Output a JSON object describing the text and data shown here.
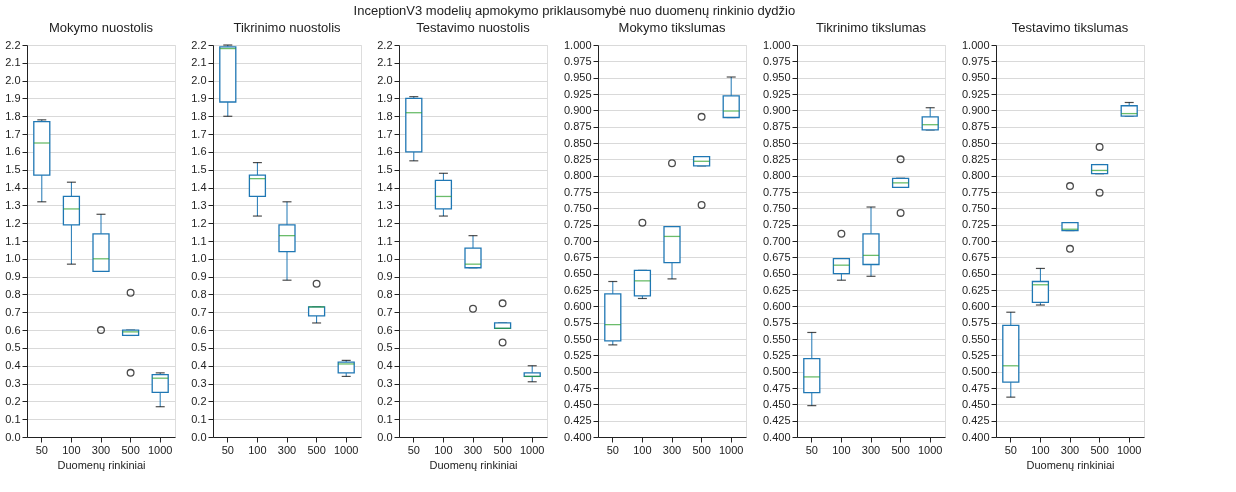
{
  "chart_data": [
    {
      "type": "box",
      "title": "Mokymo nuostolis",
      "xlabel": "Duomenų rinkiniai",
      "annotations": [
        "InceptionV3 modelių apmokymo priklausomybė nuo duomenų rinkinio dydžio"
      ],
      "color": "#1f77b4",
      "grid": "y",
      "categories": [
        "50",
        "100",
        "300",
        "500",
        "1000"
      ],
      "ylim": [
        0,
        2.2
      ],
      "yticks": [
        {
          "value": 0,
          "label": "0.0"
        },
        {
          "value": 0.1,
          "label": "0.1"
        },
        {
          "value": 0.2,
          "label": "0.2"
        },
        {
          "value": 0.3,
          "label": "0.3"
        },
        {
          "value": 0.4,
          "label": "0.4"
        },
        {
          "value": 0.5,
          "label": "0.5"
        },
        {
          "value": 0.6,
          "label": "0.6"
        },
        {
          "value": 0.7,
          "label": "0.7"
        },
        {
          "value": 0.8,
          "label": "0.8"
        },
        {
          "value": 0.9,
          "label": "0.9"
        },
        {
          "value": 1,
          "label": "1.0"
        },
        {
          "value": 1.1,
          "label": "1.1"
        },
        {
          "value": 1.2,
          "label": "1.2"
        },
        {
          "value": 1.3,
          "label": "1.3"
        },
        {
          "value": 1.4,
          "label": "1.4"
        },
        {
          "value": 1.5,
          "label": "1.5"
        },
        {
          "value": 1.6,
          "label": "1.6"
        },
        {
          "value": 1.7,
          "label": "1.7"
        },
        {
          "value": 1.8,
          "label": "1.8"
        },
        {
          "value": 1.9,
          "label": "1.9"
        },
        {
          "value": 2,
          "label": "2.0"
        },
        {
          "value": 2.1,
          "label": "2.1"
        },
        {
          "value": 2.2,
          "label": "2.2"
        }
      ],
      "boxes": [
        {
          "low": 1.32,
          "q1": 1.47,
          "median": 1.65,
          "q3": 1.77,
          "high": 1.78
        },
        {
          "low": 0.97,
          "q1": 1.19,
          "median": 1.28,
          "q3": 1.35,
          "high": 1.43
        },
        {
          "low": 0.93,
          "q1": 0.93,
          "median": 1.0,
          "q3": 1.14,
          "high": 1.25,
          "outliers": [
            0.6
          ]
        },
        {
          "low": 0.57,
          "q1": 0.57,
          "median": 0.59,
          "q3": 0.6,
          "high": 0.6,
          "outliers": [
            0.81,
            0.36
          ]
        },
        {
          "low": 0.17,
          "q1": 0.25,
          "median": 0.33,
          "q3": 0.35,
          "high": 0.36
        }
      ]
    },
    {
      "type": "box",
      "title": "Tikrinimo nuostolis",
      "color": "#1f77b4",
      "grid": "y",
      "categories": [
        "50",
        "100",
        "300",
        "500",
        "1000"
      ],
      "ylim": [
        0,
        2.2
      ],
      "yticks": [
        {
          "value": 0,
          "label": "0.0"
        },
        {
          "value": 0.1,
          "label": "0.1"
        },
        {
          "value": 0.2,
          "label": "0.2"
        },
        {
          "value": 0.3,
          "label": "0.3"
        },
        {
          "value": 0.4,
          "label": "0.4"
        },
        {
          "value": 0.5,
          "label": "0.5"
        },
        {
          "value": 0.6,
          "label": "0.6"
        },
        {
          "value": 0.7,
          "label": "0.7"
        },
        {
          "value": 0.8,
          "label": "0.8"
        },
        {
          "value": 0.9,
          "label": "0.9"
        },
        {
          "value": 1,
          "label": "1.0"
        },
        {
          "value": 1.1,
          "label": "1.1"
        },
        {
          "value": 1.2,
          "label": "1.2"
        },
        {
          "value": 1.3,
          "label": "1.3"
        },
        {
          "value": 1.4,
          "label": "1.4"
        },
        {
          "value": 1.5,
          "label": "1.5"
        },
        {
          "value": 1.6,
          "label": "1.6"
        },
        {
          "value": 1.7,
          "label": "1.7"
        },
        {
          "value": 1.8,
          "label": "1.8"
        },
        {
          "value": 1.9,
          "label": "1.9"
        },
        {
          "value": 2,
          "label": "2.0"
        },
        {
          "value": 2.1,
          "label": "2.1"
        },
        {
          "value": 2.2,
          "label": "2.2"
        }
      ],
      "boxes": [
        {
          "low": 1.8,
          "q1": 1.88,
          "median": 2.18,
          "q3": 2.19,
          "high": 2.2
        },
        {
          "low": 1.24,
          "q1": 1.35,
          "median": 1.45,
          "q3": 1.47,
          "high": 1.54
        },
        {
          "low": 0.88,
          "q1": 1.04,
          "median": 1.13,
          "q3": 1.19,
          "high": 1.32
        },
        {
          "low": 0.64,
          "q1": 0.68,
          "median": 0.73,
          "q3": 0.73,
          "high": 0.73,
          "outliers": [
            0.86
          ]
        },
        {
          "low": 0.34,
          "q1": 0.36,
          "median": 0.41,
          "q3": 0.42,
          "high": 0.43
        }
      ]
    },
    {
      "type": "box",
      "title": "Testavimo nuostolis",
      "xlabel": "Duomenų rinkiniai",
      "color": "#1f77b4",
      "grid": "y",
      "categories": [
        "50",
        "100",
        "300",
        "500",
        "1000"
      ],
      "ylim": [
        0,
        2.2
      ],
      "yticks": [
        {
          "value": 0,
          "label": "0.0"
        },
        {
          "value": 0.1,
          "label": "0.1"
        },
        {
          "value": 0.2,
          "label": "0.2"
        },
        {
          "value": 0.3,
          "label": "0.3"
        },
        {
          "value": 0.4,
          "label": "0.4"
        },
        {
          "value": 0.5,
          "label": "0.5"
        },
        {
          "value": 0.6,
          "label": "0.6"
        },
        {
          "value": 0.7,
          "label": "0.7"
        },
        {
          "value": 0.8,
          "label": "0.8"
        },
        {
          "value": 0.9,
          "label": "0.9"
        },
        {
          "value": 1,
          "label": "1.0"
        },
        {
          "value": 1.1,
          "label": "1.1"
        },
        {
          "value": 1.2,
          "label": "1.2"
        },
        {
          "value": 1.3,
          "label": "1.3"
        },
        {
          "value": 1.4,
          "label": "1.4"
        },
        {
          "value": 1.5,
          "label": "1.5"
        },
        {
          "value": 1.6,
          "label": "1.6"
        },
        {
          "value": 1.7,
          "label": "1.7"
        },
        {
          "value": 1.8,
          "label": "1.8"
        },
        {
          "value": 1.9,
          "label": "1.9"
        },
        {
          "value": 2,
          "label": "2.0"
        },
        {
          "value": 2.1,
          "label": "2.1"
        },
        {
          "value": 2.2,
          "label": "2.2"
        }
      ],
      "boxes": [
        {
          "low": 1.55,
          "q1": 1.6,
          "median": 1.82,
          "q3": 1.9,
          "high": 1.91
        },
        {
          "low": 1.24,
          "q1": 1.28,
          "median": 1.35,
          "q3": 1.44,
          "high": 1.48
        },
        {
          "low": 0.95,
          "q1": 0.95,
          "median": 0.97,
          "q3": 1.06,
          "high": 1.13,
          "outliers": [
            0.72
          ]
        },
        {
          "low": 0.61,
          "q1": 0.61,
          "median": 0.61,
          "q3": 0.64,
          "high": 0.64,
          "outliers": [
            0.75,
            0.53
          ]
        },
        {
          "low": 0.31,
          "q1": 0.34,
          "median": 0.34,
          "q3": 0.36,
          "high": 0.4
        }
      ]
    },
    {
      "type": "box",
      "title": "Mokymo tikslumas",
      "color": "#1f77b4",
      "grid": "y",
      "categories": [
        "50",
        "100",
        "300",
        "500",
        "1000"
      ],
      "ylim": [
        0.4,
        1.0
      ],
      "yticks": [
        {
          "value": 0.4,
          "label": "0.400"
        },
        {
          "value": 0.425,
          "label": "0.425"
        },
        {
          "value": 0.45,
          "label": "0.450"
        },
        {
          "value": 0.475,
          "label": "0.475"
        },
        {
          "value": 0.5,
          "label": "0.500"
        },
        {
          "value": 0.525,
          "label": "0.525"
        },
        {
          "value": 0.55,
          "label": "0.550"
        },
        {
          "value": 0.575,
          "label": "0.575"
        },
        {
          "value": 0.6,
          "label": "0.600"
        },
        {
          "value": 0.625,
          "label": "0.625"
        },
        {
          "value": 0.65,
          "label": "0.650"
        },
        {
          "value": 0.675,
          "label": "0.675"
        },
        {
          "value": 0.7,
          "label": "0.700"
        },
        {
          "value": 0.725,
          "label": "0.725"
        },
        {
          "value": 0.75,
          "label": "0.750"
        },
        {
          "value": 0.775,
          "label": "0.775"
        },
        {
          "value": 0.8,
          "label": "0.800"
        },
        {
          "value": 0.825,
          "label": "0.825"
        },
        {
          "value": 0.85,
          "label": "0.850"
        },
        {
          "value": 0.875,
          "label": "0.875"
        },
        {
          "value": 0.9,
          "label": "0.900"
        },
        {
          "value": 0.925,
          "label": "0.925"
        },
        {
          "value": 0.95,
          "label": "0.950"
        },
        {
          "value": 0.975,
          "label": "0.975"
        },
        {
          "value": 1.0,
          "label": "1.000"
        }
      ],
      "boxes": [
        {
          "low": 0.541,
          "q1": 0.547,
          "median": 0.572,
          "q3": 0.619,
          "high": 0.638
        },
        {
          "low": 0.612,
          "q1": 0.616,
          "median": 0.639,
          "q3": 0.655,
          "high": 0.655,
          "outliers": [
            0.728
          ]
        },
        {
          "low": 0.642,
          "q1": 0.667,
          "median": 0.707,
          "q3": 0.722,
          "high": 0.722,
          "outliers": [
            0.819
          ]
        },
        {
          "low": 0.815,
          "q1": 0.815,
          "median": 0.822,
          "q3": 0.829,
          "high": 0.829,
          "outliers": [
            0.89,
            0.755
          ]
        },
        {
          "low": 0.889,
          "q1": 0.889,
          "median": 0.899,
          "q3": 0.922,
          "high": 0.951
        }
      ]
    },
    {
      "type": "box",
      "title": "Tikrinimo tikslumas",
      "color": "#1f77b4",
      "grid": "y",
      "categories": [
        "50",
        "100",
        "300",
        "500",
        "1000"
      ],
      "ylim": [
        0.4,
        1.0
      ],
      "yticks": [
        {
          "value": 0.4,
          "label": "0.400"
        },
        {
          "value": 0.425,
          "label": "0.425"
        },
        {
          "value": 0.45,
          "label": "0.450"
        },
        {
          "value": 0.475,
          "label": "0.475"
        },
        {
          "value": 0.5,
          "label": "0.500"
        },
        {
          "value": 0.525,
          "label": "0.525"
        },
        {
          "value": 0.55,
          "label": "0.550"
        },
        {
          "value": 0.575,
          "label": "0.575"
        },
        {
          "value": 0.6,
          "label": "0.600"
        },
        {
          "value": 0.625,
          "label": "0.625"
        },
        {
          "value": 0.65,
          "label": "0.650"
        },
        {
          "value": 0.675,
          "label": "0.675"
        },
        {
          "value": 0.7,
          "label": "0.700"
        },
        {
          "value": 0.725,
          "label": "0.725"
        },
        {
          "value": 0.75,
          "label": "0.750"
        },
        {
          "value": 0.775,
          "label": "0.775"
        },
        {
          "value": 0.8,
          "label": "0.800"
        },
        {
          "value": 0.825,
          "label": "0.825"
        },
        {
          "value": 0.85,
          "label": "0.850"
        },
        {
          "value": 0.875,
          "label": "0.875"
        },
        {
          "value": 0.9,
          "label": "0.900"
        },
        {
          "value": 0.925,
          "label": "0.925"
        },
        {
          "value": 0.95,
          "label": "0.950"
        },
        {
          "value": 0.975,
          "label": "0.975"
        },
        {
          "value": 1.0,
          "label": "1.000"
        }
      ],
      "boxes": [
        {
          "low": 0.448,
          "q1": 0.468,
          "median": 0.492,
          "q3": 0.52,
          "high": 0.56
        },
        {
          "low": 0.64,
          "q1": 0.65,
          "median": 0.663,
          "q3": 0.673,
          "high": 0.673,
          "outliers": [
            0.711
          ]
        },
        {
          "low": 0.646,
          "q1": 0.664,
          "median": 0.678,
          "q3": 0.711,
          "high": 0.752
        },
        {
          "low": 0.782,
          "q1": 0.782,
          "median": 0.789,
          "q3": 0.796,
          "high": 0.796,
          "outliers": [
            0.825,
            0.743
          ]
        },
        {
          "low": 0.87,
          "q1": 0.87,
          "median": 0.878,
          "q3": 0.89,
          "high": 0.904
        }
      ]
    },
    {
      "type": "box",
      "title": "Testavimo tikslumas",
      "xlabel": "Duomenų rinkiniai",
      "color": "#1f77b4",
      "grid": "y",
      "categories": [
        "50",
        "100",
        "300",
        "500",
        "1000"
      ],
      "ylim": [
        0.4,
        1.0
      ],
      "yticks": [
        {
          "value": 0.4,
          "label": "0.400"
        },
        {
          "value": 0.425,
          "label": "0.425"
        },
        {
          "value": 0.45,
          "label": "0.450"
        },
        {
          "value": 0.475,
          "label": "0.475"
        },
        {
          "value": 0.5,
          "label": "0.500"
        },
        {
          "value": 0.525,
          "label": "0.525"
        },
        {
          "value": 0.55,
          "label": "0.550"
        },
        {
          "value": 0.575,
          "label": "0.575"
        },
        {
          "value": 0.6,
          "label": "0.600"
        },
        {
          "value": 0.625,
          "label": "0.625"
        },
        {
          "value": 0.65,
          "label": "0.650"
        },
        {
          "value": 0.675,
          "label": "0.675"
        },
        {
          "value": 0.7,
          "label": "0.700"
        },
        {
          "value": 0.725,
          "label": "0.725"
        },
        {
          "value": 0.75,
          "label": "0.750"
        },
        {
          "value": 0.775,
          "label": "0.775"
        },
        {
          "value": 0.8,
          "label": "0.800"
        },
        {
          "value": 0.825,
          "label": "0.825"
        },
        {
          "value": 0.85,
          "label": "0.850"
        },
        {
          "value": 0.875,
          "label": "0.875"
        },
        {
          "value": 0.9,
          "label": "0.900"
        },
        {
          "value": 0.925,
          "label": "0.925"
        },
        {
          "value": 0.95,
          "label": "0.950"
        },
        {
          "value": 0.975,
          "label": "0.975"
        },
        {
          "value": 1.0,
          "label": "1.000"
        }
      ],
      "boxes": [
        {
          "low": 0.461,
          "q1": 0.484,
          "median": 0.509,
          "q3": 0.571,
          "high": 0.591
        },
        {
          "low": 0.602,
          "q1": 0.606,
          "median": 0.633,
          "q3": 0.638,
          "high": 0.658
        },
        {
          "low": 0.716,
          "q1": 0.716,
          "median": 0.718,
          "q3": 0.728,
          "high": 0.728,
          "outliers": [
            0.784,
            0.688
          ]
        },
        {
          "low": 0.803,
          "q1": 0.803,
          "median": 0.808,
          "q3": 0.817,
          "high": 0.817,
          "outliers": [
            0.844,
            0.774
          ]
        },
        {
          "low": 0.891,
          "q1": 0.891,
          "median": 0.895,
          "q3": 0.907,
          "high": 0.912
        }
      ]
    }
  ]
}
